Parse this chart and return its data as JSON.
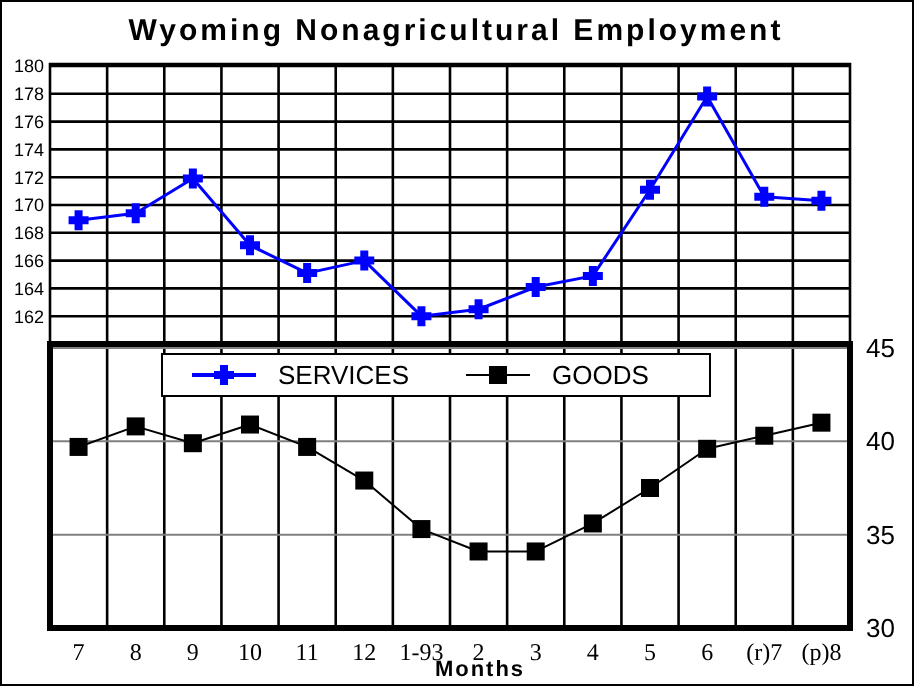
{
  "chart_data": [
    {
      "type": "line",
      "title": "Wyoming Nonagricultural Employment",
      "categories": [
        null,
        null,
        null,
        null,
        null,
        null,
        null,
        null,
        null,
        null,
        null,
        null,
        null,
        null
      ],
      "series": [
        {
          "name": "SERVICES",
          "color": "#0000ff",
          "marker": "cross",
          "values": [
            168.9,
            169.4,
            171.9,
            167.1,
            165.1,
            166.0,
            162.0,
            162.5,
            164.1,
            164.9,
            171.1,
            177.8,
            170.6,
            170.3
          ]
        }
      ],
      "ylim": [
        160,
        180
      ],
      "yticks": [
        162,
        164,
        166,
        168,
        170,
        172,
        174,
        176,
        178,
        180
      ],
      "grid": true,
      "tick_labels": "y",
      "legend": "bottom"
    },
    {
      "type": "line",
      "xlabel": "Months",
      "categories": [
        "7",
        "8",
        "9",
        "10",
        "11",
        "12",
        "1-93",
        "2",
        "3",
        "4",
        "5",
        "6",
        "(r)7",
        "(p)8"
      ],
      "series": [
        {
          "name": "GOODS",
          "color": "#000000",
          "marker": "square",
          "axis": "y2",
          "values": [
            39.7,
            40.8,
            39.9,
            40.9,
            39.7,
            37.9,
            35.3,
            34.1,
            34.1,
            35.6,
            37.5,
            39.6,
            40.3,
            41.0
          ]
        }
      ],
      "y2lim": [
        30,
        45
      ],
      "y2ticks": [
        30,
        35,
        40,
        45
      ],
      "grid": true,
      "legend": "top"
    }
  ]
}
